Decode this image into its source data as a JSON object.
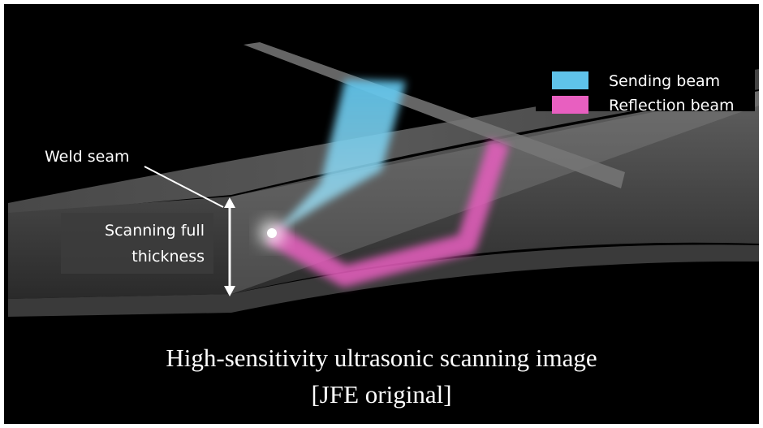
{
  "legend": [
    {
      "name": "Sending beam",
      "color": "#5fc3ea"
    },
    {
      "name": "Reflection beam",
      "color": "#e85fc0"
    }
  ],
  "labels": {
    "weld_seam": "Weld seam",
    "scanning": [
      "Scanning full",
      "thickness"
    ]
  },
  "caption": [
    "High-sensitivity ultrasonic scanning image",
    "[JFE original]"
  ]
}
